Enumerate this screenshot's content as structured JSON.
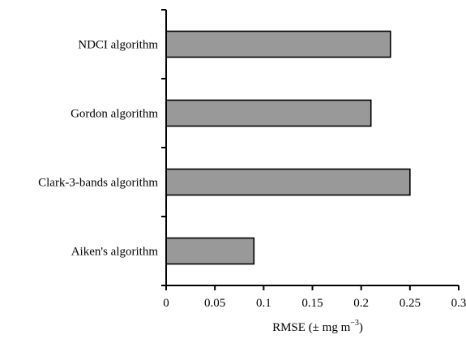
{
  "chart_data": {
    "type": "bar",
    "orientation": "horizontal",
    "categories": [
      "NDCI algorithm",
      "Gordon algorithm",
      "Clark-3-bands algorithm",
      "Aiken's algorithm"
    ],
    "values": [
      0.23,
      0.21,
      0.25,
      0.09
    ],
    "title": "",
    "xlabel": "RMSE (± mg m",
    "xlabel_superscript": "−3",
    "xlabel_suffix": ")",
    "ylabel": "",
    "xlim": [
      0,
      0.3
    ],
    "xticks": [
      0,
      0.05,
      0.1,
      0.15,
      0.2,
      0.25,
      0.3
    ],
    "xtick_labels": [
      "0",
      "0.05",
      "0.1",
      "0.15",
      "0.2",
      "0.25",
      "0.3"
    ],
    "grid": false,
    "bar_color": "#999999",
    "edge_color": "#000000"
  }
}
